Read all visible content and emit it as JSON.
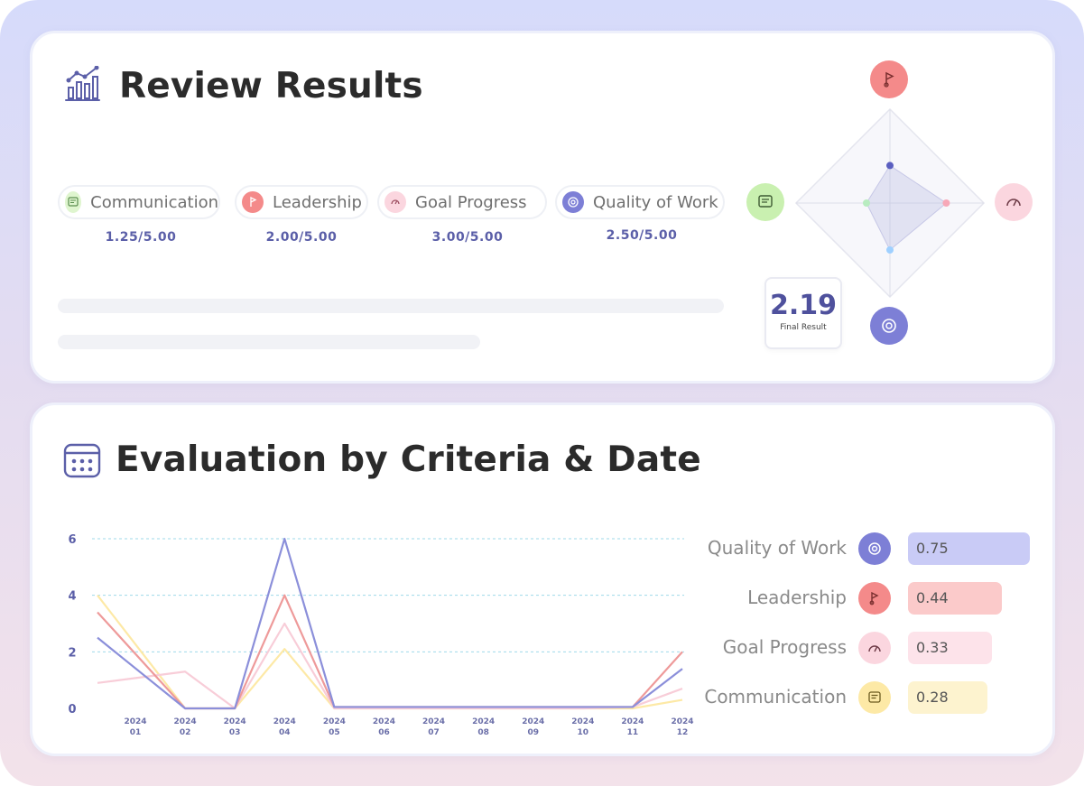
{
  "review": {
    "title": "Review Results",
    "criteria": [
      {
        "label": "Communication",
        "score": "1.25/5.00",
        "color": "#dff5cf",
        "icon": "chat-icon"
      },
      {
        "label": "Leadership",
        "score": "2.00/5.00",
        "color": "#f48a8a",
        "icon": "flag-icon"
      },
      {
        "label": "Goal Progress",
        "score": "3.00/5.00",
        "color": "#fbd6df",
        "icon": "gauge-icon"
      },
      {
        "label": "Quality of Work",
        "score": "2.50/5.00",
        "color": "#7d7fd6",
        "icon": "target-icon"
      }
    ],
    "final_value": "2.19",
    "final_label": "Final Result"
  },
  "evaluation": {
    "title": "Evaluation by Criteria & Date",
    "legend": [
      {
        "name": "Quality of Work",
        "value": "0.75",
        "fraction": 0.75,
        "bar_color": "#c9cbf6",
        "icon_color": "#7d7fd6",
        "icon": "target-icon"
      },
      {
        "name": "Leadership",
        "value": "0.44",
        "fraction": 0.44,
        "bar_color": "#fbcaca",
        "icon_color": "#f48a8a",
        "icon": "flag-icon"
      },
      {
        "name": "Goal Progress",
        "value": "0.33",
        "fraction": 0.33,
        "bar_color": "#fde3ea",
        "icon_color": "#fbd6df",
        "icon": "gauge-icon"
      },
      {
        "name": "Communication",
        "value": "0.28",
        "fraction": 0.28,
        "bar_color": "#fdf3cf",
        "icon_color": "#fde9a6",
        "icon": "chat-icon"
      }
    ]
  },
  "chart_data": [
    {
      "type": "radar",
      "axes": [
        "Leadership",
        "Goal Progress",
        "Quality of Work",
        "Communication"
      ],
      "values": [
        2.0,
        3.0,
        2.5,
        1.25
      ],
      "max": 5,
      "point_colors": [
        "#5b5fc0",
        "#f7a8b8",
        "#9fd0ff",
        "#b8ecc0"
      ]
    },
    {
      "type": "line",
      "x": [
        "2024 01",
        "2024 02",
        "2024 03",
        "2024 04",
        "2024 05",
        "2024 06",
        "2024 07",
        "2024 08",
        "2024 09",
        "2024 10",
        "2024 11",
        "2024 12"
      ],
      "ylim": [
        0,
        6
      ],
      "yticks": [
        "0",
        "2",
        "4",
        "6"
      ],
      "grid": true,
      "series": [
        {
          "name": "Quality of Work",
          "color": "#8b8fda",
          "values": [
            2.5,
            0,
            0,
            6,
            0.05,
            0.05,
            0.05,
            0.05,
            0.05,
            0.05,
            0.05,
            1.4
          ],
          "start": 2.5
        },
        {
          "name": "Leadership",
          "color": "#ee9a9a",
          "values": [
            3.4,
            0,
            0,
            4,
            0.05,
            0.05,
            0.05,
            0.05,
            0.05,
            0.05,
            0.05,
            2
          ],
          "start": 3.4
        },
        {
          "name": "Goal Progress",
          "color": "#f8cdd8",
          "values": [
            0.9,
            1.3,
            0,
            3,
            0,
            0,
            0,
            0,
            0,
            0,
            0.05,
            0.7
          ],
          "start": 0.9
        },
        {
          "name": "Communication",
          "color": "#fde9a6",
          "values": [
            4,
            0,
            0,
            2.1,
            0,
            0,
            0,
            0,
            0,
            0,
            0,
            0.3
          ],
          "start": 4
        }
      ]
    }
  ]
}
